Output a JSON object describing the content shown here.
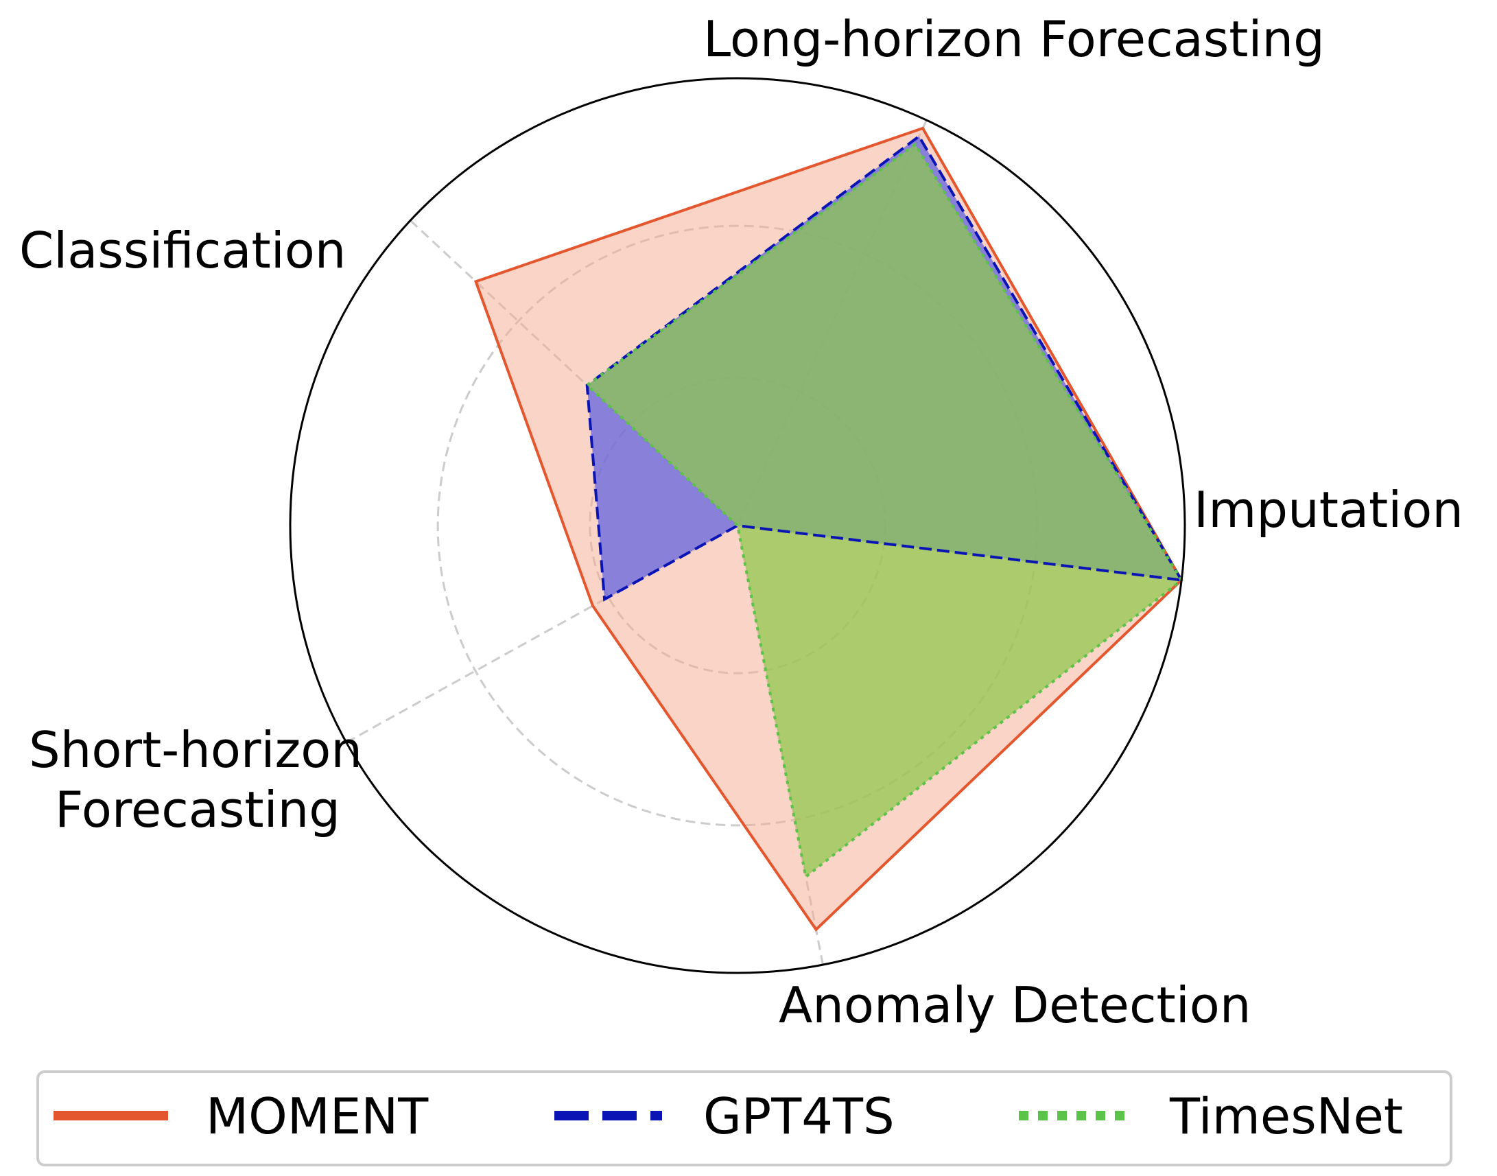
{
  "chart_data": {
    "type": "radar",
    "axes": [
      "Imputation",
      "Long-horizon Forecasting",
      "Classification",
      "Short-horizon Forecasting",
      "Anomaly Detection"
    ],
    "axis_labels": {
      "imputation": "Imputation",
      "long_horizon": "Long-horizon Forecasting",
      "classification": "Classification",
      "short_horizon": [
        "Short-horizon",
        "Forecasting"
      ],
      "anomaly": "Anomaly Detection"
    },
    "rlim": [
      0,
      1
    ],
    "rings": [
      0.33,
      0.67,
      1.0
    ],
    "grid": true,
    "series": [
      {
        "name": "MOMENT",
        "values": [
          1.0,
          0.98,
          0.8,
          0.37,
          0.92
        ],
        "color": "#e4572e",
        "fill": "#f4a98f",
        "style": "solid"
      },
      {
        "name": "GPT4TS",
        "values": [
          1.0,
          0.96,
          0.46,
          0.34,
          0.0
        ],
        "color": "#0a14b4",
        "fill": "#5c60e0",
        "style": "dashed"
      },
      {
        "name": "TimesNet",
        "values": [
          1.0,
          0.94,
          0.46,
          0.0,
          0.8
        ],
        "color": "#5bc24a",
        "fill": "#8ec84a",
        "style": "dotted"
      }
    ],
    "legend": {
      "position": "bottom",
      "entries": [
        "MOMENT",
        "GPT4TS",
        "TimesNet"
      ]
    }
  }
}
